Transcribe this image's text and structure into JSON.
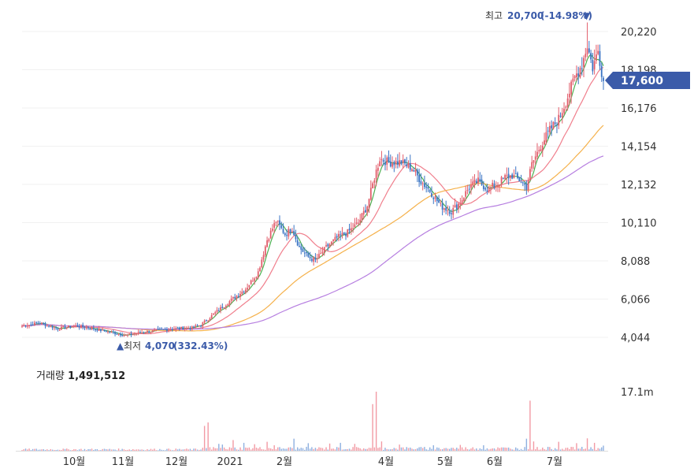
{
  "volume_caption": {
    "label": "거래량",
    "value": "1,491,512"
  },
  "colors": {
    "up": "#e25d6b",
    "down": "#3a74c4",
    "ma5": "#4caf50",
    "ma20": "#f07e8c",
    "ma60": "#f5b14b",
    "ma120": "#b67ee0",
    "current_badge": "#3b5ba9"
  },
  "chart_data": {
    "type": "candlestick",
    "price_axis": {
      "ticks": [
        "20,220",
        "18,198",
        "16,176",
        "14,154",
        "12,132",
        "10,110",
        "8,088",
        "6,066",
        "4,044"
      ],
      "min": 4044,
      "max": 20220
    },
    "volume_axis": {
      "ticks": [
        "17.1m"
      ],
      "max": 17100000
    },
    "x_ticks": [
      "10월",
      "11월",
      "12월",
      "2021",
      "2월",
      "4월",
      "5월",
      "6월",
      "7월"
    ],
    "high_marker": {
      "label": "최고",
      "value": "20,700",
      "change": "(-14.98%)",
      "marker": "▼"
    },
    "low_marker": {
      "label": "최저",
      "value": "4,070",
      "change": "(332.43%)",
      "marker": "▲"
    },
    "current_price": "17,600",
    "latest_volume": 1491512,
    "close_anchors": [
      {
        "i": 0,
        "p": 4650
      },
      {
        "i": 10,
        "p": 4800
      },
      {
        "i": 20,
        "p": 4500
      },
      {
        "i": 30,
        "p": 4650
      },
      {
        "i": 40,
        "p": 4500
      },
      {
        "i": 50,
        "p": 4300
      },
      {
        "i": 58,
        "p": 4150
      },
      {
        "i": 70,
        "p": 4350
      },
      {
        "i": 85,
        "p": 4500
      },
      {
        "i": 95,
        "p": 4550
      },
      {
        "i": 100,
        "p": 4700
      },
      {
        "i": 110,
        "p": 5500
      },
      {
        "i": 118,
        "p": 6100
      },
      {
        "i": 125,
        "p": 6600
      },
      {
        "i": 132,
        "p": 7500
      },
      {
        "i": 137,
        "p": 9200
      },
      {
        "i": 142,
        "p": 10200
      },
      {
        "i": 147,
        "p": 9500
      },
      {
        "i": 151,
        "p": 9800
      },
      {
        "i": 155,
        "p": 8800
      },
      {
        "i": 160,
        "p": 8300
      },
      {
        "i": 164,
        "p": 8100
      },
      {
        "i": 170,
        "p": 8800
      },
      {
        "i": 176,
        "p": 9300
      },
      {
        "i": 182,
        "p": 9600
      },
      {
        "i": 188,
        "p": 10100
      },
      {
        "i": 193,
        "p": 11000
      },
      {
        "i": 197,
        "p": 12500
      },
      {
        "i": 200,
        "p": 13500
      },
      {
        "i": 205,
        "p": 13300
      },
      {
        "i": 212,
        "p": 13300
      },
      {
        "i": 218,
        "p": 13000
      },
      {
        "i": 223,
        "p": 12300
      },
      {
        "i": 228,
        "p": 11800
      },
      {
        "i": 234,
        "p": 11000
      },
      {
        "i": 240,
        "p": 10700
      },
      {
        "i": 245,
        "p": 11200
      },
      {
        "i": 250,
        "p": 12000
      },
      {
        "i": 255,
        "p": 12300
      },
      {
        "i": 260,
        "p": 11900
      },
      {
        "i": 265,
        "p": 12100
      },
      {
        "i": 270,
        "p": 12500
      },
      {
        "i": 274,
        "p": 12600
      },
      {
        "i": 279,
        "p": 12300
      },
      {
        "i": 282,
        "p": 12000
      },
      {
        "i": 285,
        "p": 13200
      },
      {
        "i": 290,
        "p": 14200
      },
      {
        "i": 295,
        "p": 15000
      },
      {
        "i": 300,
        "p": 15600
      },
      {
        "i": 304,
        "p": 16500
      },
      {
        "i": 309,
        "p": 17800
      },
      {
        "i": 313,
        "p": 18500
      },
      {
        "i": 316,
        "p": 19500
      },
      {
        "i": 319,
        "p": 18300
      },
      {
        "i": 322,
        "p": 19200
      },
      {
        "i": 325,
        "p": 17600
      }
    ],
    "volume_spikes": [
      {
        "i": 102,
        "v": 7200000
      },
      {
        "i": 104,
        "v": 8200000
      },
      {
        "i": 110,
        "v": 2000000
      },
      {
        "i": 112,
        "v": 1800000
      },
      {
        "i": 118,
        "v": 3100000
      },
      {
        "i": 124,
        "v": 2300000
      },
      {
        "i": 130,
        "v": 1900000
      },
      {
        "i": 137,
        "v": 2600000
      },
      {
        "i": 141,
        "v": 1600000
      },
      {
        "i": 152,
        "v": 3500000
      },
      {
        "i": 160,
        "v": 2200000
      },
      {
        "i": 172,
        "v": 2100000
      },
      {
        "i": 178,
        "v": 2300000
      },
      {
        "i": 186,
        "v": 2000000
      },
      {
        "i": 196,
        "v": 13500000
      },
      {
        "i": 198,
        "v": 17100000
      },
      {
        "i": 201,
        "v": 2700000
      },
      {
        "i": 211,
        "v": 1800000
      },
      {
        "i": 230,
        "v": 1600000
      },
      {
        "i": 245,
        "v": 1700000
      },
      {
        "i": 258,
        "v": 1600000
      },
      {
        "i": 282,
        "v": 3500000
      },
      {
        "i": 284,
        "v": 14500000
      },
      {
        "i": 286,
        "v": 2700000
      },
      {
        "i": 300,
        "v": 2600000
      },
      {
        "i": 310,
        "v": 2200000
      },
      {
        "i": 316,
        "v": 3600000
      },
      {
        "i": 320,
        "v": 2300000
      },
      {
        "i": 325,
        "v": 1491512
      }
    ]
  }
}
